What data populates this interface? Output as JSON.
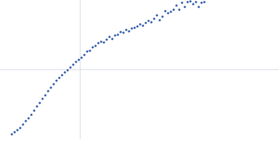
{
  "chart_data": {
    "type": "scatter",
    "color": "#3f66b0",
    "grid": true,
    "xlim": [
      0,
      400
    ],
    "ylim": [
      0,
      200
    ],
    "xticks": [
      115
    ],
    "yticks": [
      100
    ],
    "x": [
      17,
      21,
      25,
      29,
      33,
      37,
      41,
      45,
      49,
      53,
      57,
      61,
      65,
      69,
      73,
      77,
      81,
      85,
      89,
      93,
      97,
      101,
      105,
      109,
      113,
      117,
      121,
      125,
      129,
      133,
      137,
      141,
      145,
      149,
      153,
      157,
      161,
      165,
      169,
      173,
      177,
      181,
      185,
      189,
      193,
      197,
      201,
      205,
      209,
      213,
      217,
      221,
      225,
      229,
      233,
      237,
      241,
      245,
      249,
      253,
      257,
      261,
      265,
      269,
      273,
      277,
      281,
      285,
      289,
      293
    ],
    "values": [
      7,
      10,
      13,
      16,
      21,
      26,
      30,
      35,
      41,
      47,
      52,
      58,
      63,
      69,
      74,
      79,
      84,
      88,
      92,
      96,
      99,
      103,
      107,
      111,
      114,
      117,
      121,
      126,
      127,
      132,
      134,
      138,
      140,
      139,
      143,
      147,
      144,
      149,
      150,
      154,
      153,
      157,
      155,
      159,
      160,
      162,
      165,
      163,
      167,
      170,
      168,
      173,
      178,
      171,
      176,
      184,
      181,
      183,
      186,
      192,
      186,
      196,
      190,
      197,
      198,
      194,
      197,
      190,
      196,
      197
    ]
  }
}
